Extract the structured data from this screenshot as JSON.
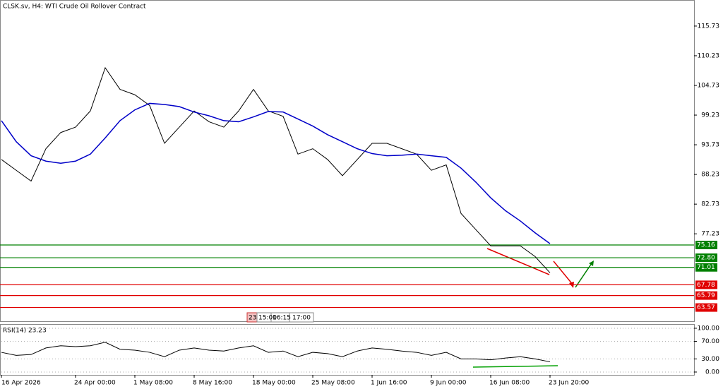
{
  "header": "CLSK.sv, H4:  WTI Crude Oil Rollover Contract",
  "time_labels": [
    "23",
    "15:00",
    "16:15",
    "17:00"
  ],
  "chart_data": [
    {
      "type": "line",
      "categories": [
        "16 Apr 2026",
        null,
        null,
        null,
        null,
        "24 Apr 00:00",
        null,
        null,
        null,
        "1 May 08:00",
        null,
        null,
        null,
        "8 May 16:00",
        null,
        null,
        null,
        "18 May 00:00",
        null,
        null,
        null,
        "25 May 08:00",
        null,
        null,
        null,
        "1 Jun 16:00",
        null,
        null,
        null,
        "9 Jun 00:00",
        null,
        null,
        null,
        "16 Jun 08:00",
        null,
        null,
        null,
        "23 Jun 20:00"
      ],
      "series": [
        {
          "color": "#000000",
          "values": [
            91,
            89,
            87,
            93,
            96,
            97,
            100,
            108,
            104,
            103,
            101,
            94,
            97,
            100,
            98,
            97,
            100,
            104,
            100,
            99,
            92,
            93,
            91,
            88,
            91,
            94,
            94,
            93,
            92,
            89,
            90,
            81,
            78,
            75,
            75,
            75,
            73,
            70
          ]
        },
        {
          "color": "#0000c8",
          "values": [
            98.2,
            94.3,
            91.7,
            90.7,
            90.3,
            90.7,
            92.0,
            95.0,
            98.2,
            100.2,
            101.4,
            101.2,
            100.8,
            99.8,
            99.1,
            98.2,
            98.0,
            98.9,
            99.9,
            99.8,
            98.5,
            97.2,
            95.6,
            94.3,
            93.0,
            92.1,
            91.7,
            91.8,
            92.0,
            91.7,
            91.4,
            89.4,
            86.8,
            83.9,
            81.5,
            79.6,
            77.4,
            75.4
          ]
        }
      ],
      "ylim": [
        61.03,
        120.43
      ],
      "yticks": [
        77.23,
        82.73,
        88.23,
        93.73,
        99.23,
        104.73,
        110.23,
        115.73
      ],
      "levels": [
        {
          "value": 75.16,
          "color": "#008000"
        },
        {
          "value": 72.8,
          "label": "72.80",
          "color": "#008000"
        },
        {
          "value": 71.01,
          "color": "#008000"
        },
        {
          "value": 67.78,
          "color": "#e00000"
        },
        {
          "value": 65.79,
          "color": "#e00000"
        },
        {
          "value": 63.57,
          "color": "#e00000"
        }
      ]
    },
    {
      "type": "line",
      "title": "RSI(14) 23.23",
      "series": [
        {
          "color": "#000000",
          "values": [
            45,
            38,
            40,
            55,
            60,
            58,
            60,
            68,
            52,
            50,
            45,
            35,
            50,
            55,
            50,
            48,
            55,
            60,
            45,
            48,
            35,
            45,
            42,
            35,
            48,
            55,
            52,
            48,
            45,
            38,
            45,
            30,
            30,
            28,
            32,
            35,
            30,
            23.23
          ]
        }
      ],
      "ylim": [
        -6.5,
        108
      ],
      "yticks": [
        {
          "value": 0,
          "label": "0.00"
        },
        {
          "value": 30,
          "label": "30.00"
        },
        {
          "value": 70,
          "label": "70.00"
        },
        {
          "value": 100,
          "label": "100.00"
        }
      ],
      "grid": true
    }
  ]
}
